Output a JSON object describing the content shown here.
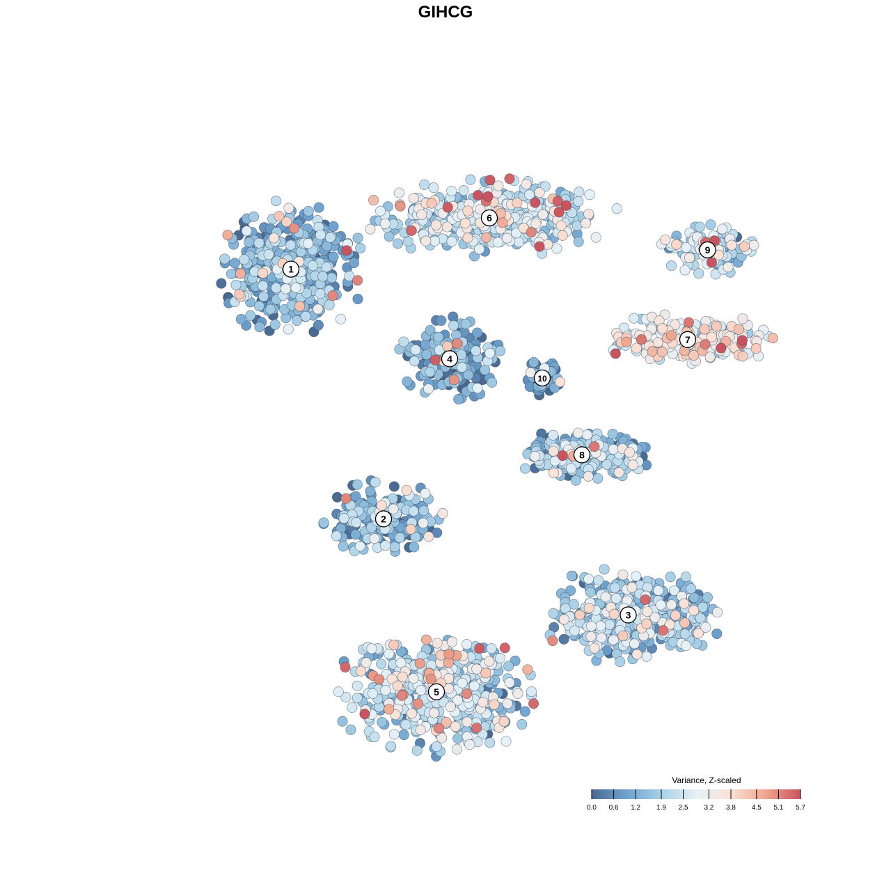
{
  "chart_data": {
    "type": "scatter",
    "title": "GIHCG",
    "colorbar": {
      "title": "Variance, Z-scaled",
      "ticks": [
        "0.0",
        "0.6",
        "1.2",
        "1.9",
        "2.5",
        "3.2",
        "3.8",
        "4.5",
        "5.1",
        "5.7"
      ],
      "min": 0.0,
      "max": 5.7,
      "colors": [
        "#4a6a92",
        "#6fa2cf",
        "#a9d0e6",
        "#e6f1f8",
        "#fbe1d6",
        "#eea58e",
        "#c9545f"
      ]
    },
    "clusters": [
      {
        "label": "1",
        "x": -2.6,
        "y": 2.7,
        "mean_value": 1.2
      },
      {
        "label": "2",
        "x": -1.2,
        "y": -1.2,
        "mean_value": 1.0
      },
      {
        "label": "3",
        "x": 2.5,
        "y": -2.7,
        "mean_value": 1.8
      },
      {
        "label": "4",
        "x": -0.2,
        "y": 1.3,
        "mean_value": 0.9
      },
      {
        "label": "5",
        "x": -0.4,
        "y": -3.9,
        "mean_value": 2.1
      },
      {
        "label": "6",
        "x": 0.4,
        "y": 3.5,
        "mean_value": 2.3
      },
      {
        "label": "7",
        "x": 3.4,
        "y": 1.6,
        "mean_value": 3.0
      },
      {
        "label": "8",
        "x": 1.8,
        "y": -0.2,
        "mean_value": 1.6
      },
      {
        "label": "9",
        "x": 3.7,
        "y": 3.0,
        "mean_value": 2.2
      },
      {
        "label": "10",
        "x": 1.2,
        "y": 1.0,
        "mean_value": 0.4
      }
    ],
    "xlim": [
      -5,
      5
    ],
    "ylim": [
      -5,
      5
    ],
    "grid": false,
    "legend_position": "bottom-right"
  }
}
